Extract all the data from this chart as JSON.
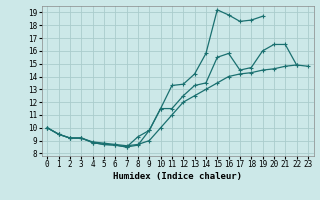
{
  "title": "",
  "xlabel": "Humidex (Indice chaleur)",
  "bg_color": "#cce8e8",
  "grid_color": "#aacccc",
  "line_color": "#1a7070",
  "xlim": [
    -0.5,
    23.5
  ],
  "ylim": [
    7.8,
    19.5
  ],
  "xticks": [
    0,
    1,
    2,
    3,
    4,
    5,
    6,
    7,
    8,
    9,
    10,
    11,
    12,
    13,
    14,
    15,
    16,
    17,
    18,
    19,
    20,
    21,
    22,
    23
  ],
  "yticks": [
    8,
    9,
    10,
    11,
    12,
    13,
    14,
    15,
    16,
    17,
    18,
    19
  ],
  "line1_x": [
    0,
    1,
    2,
    3,
    4,
    5,
    6,
    7,
    8,
    9,
    10,
    11,
    12,
    13,
    14,
    15,
    16,
    17,
    18,
    19
  ],
  "line1_y": [
    10.0,
    9.5,
    9.2,
    9.2,
    8.85,
    8.7,
    8.65,
    8.5,
    8.65,
    9.8,
    11.5,
    13.3,
    13.4,
    14.2,
    15.8,
    19.2,
    18.8,
    18.3,
    18.4,
    18.7
  ],
  "line2_x": [
    0,
    1,
    2,
    3,
    4,
    5,
    6,
    7,
    8,
    9,
    10,
    11,
    12,
    13,
    14,
    15,
    16,
    17,
    18,
    19,
    20,
    21,
    22
  ],
  "line2_y": [
    10.0,
    9.5,
    9.2,
    9.2,
    8.85,
    8.7,
    8.65,
    8.5,
    9.3,
    9.8,
    11.5,
    11.5,
    12.5,
    13.3,
    13.5,
    15.5,
    15.8,
    14.5,
    14.7,
    16.0,
    16.5,
    16.5,
    14.9
  ],
  "line3_x": [
    0,
    1,
    2,
    3,
    4,
    5,
    6,
    7,
    8,
    9,
    10,
    11,
    12,
    13,
    14,
    15,
    16,
    17,
    18,
    19,
    20,
    21,
    22,
    23
  ],
  "line3_y": [
    10.0,
    9.5,
    9.2,
    9.2,
    8.9,
    8.8,
    8.7,
    8.6,
    8.7,
    9.0,
    10.0,
    11.0,
    12.0,
    12.5,
    13.0,
    13.5,
    14.0,
    14.2,
    14.3,
    14.5,
    14.6,
    14.8,
    14.9,
    14.8
  ]
}
